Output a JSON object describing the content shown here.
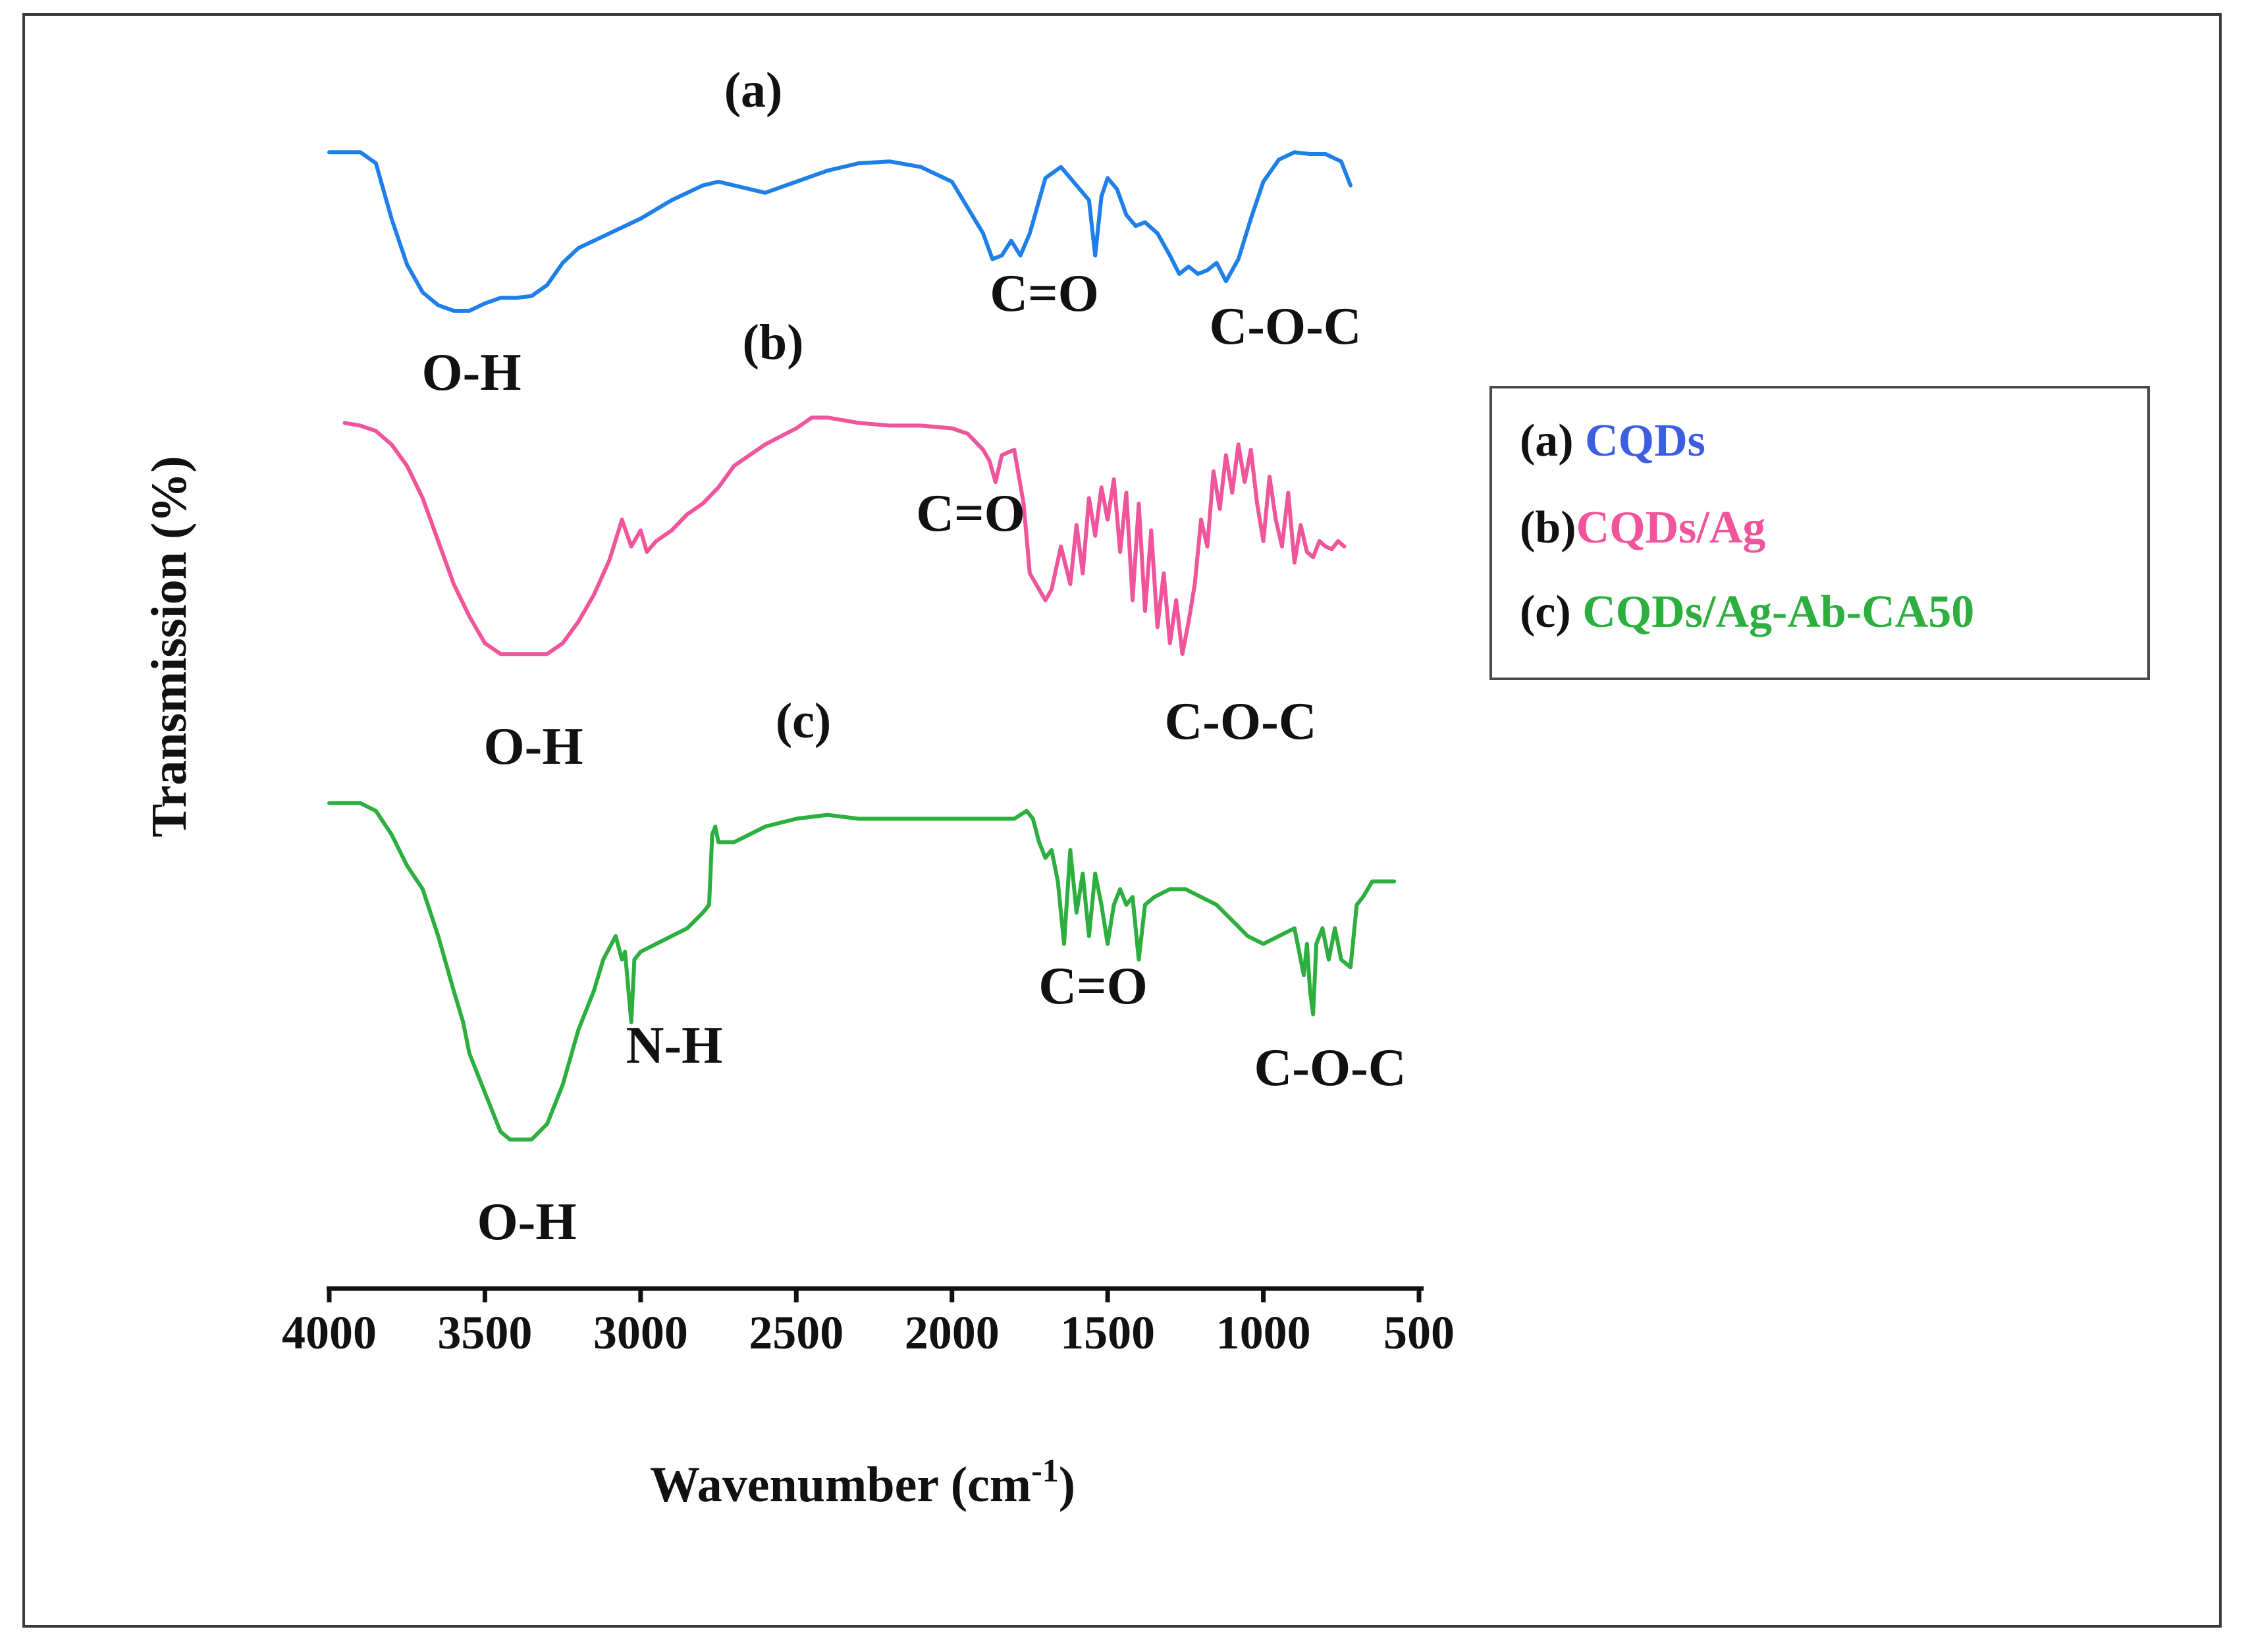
{
  "chart_data": {
    "type": "line",
    "title": "",
    "xlabel": "Wavenumber (cm",
    "xlabel_sup": "-1",
    "xlabel_close": ")",
    "ylabel": "Transmission (%)",
    "xlim": [
      4000,
      500
    ],
    "x_reversed": true,
    "x_ticks": [
      4000,
      3500,
      3000,
      2500,
      2000,
      1500,
      1000,
      500
    ],
    "x_tick_labels": [
      "4000",
      "3500",
      "3000",
      "2500",
      "2000",
      "1500",
      "1000",
      "500"
    ],
    "grid": false,
    "legend_position": "right",
    "y_units": "relative (arbitrary, vertically offset)",
    "series": [
      {
        "name": "CQDs",
        "marker": "(a)",
        "color": "#1f7fe8",
        "x": [
          4000,
          3900,
          3850,
          3800,
          3750,
          3700,
          3650,
          3600,
          3550,
          3500,
          3450,
          3400,
          3350,
          3300,
          3250,
          3200,
          3100,
          3000,
          2900,
          2800,
          2750,
          2700,
          2600,
          2500,
          2400,
          2300,
          2200,
          2100,
          2000,
          1950,
          1900,
          1870,
          1840,
          1810,
          1780,
          1750,
          1700,
          1650,
          1600,
          1560,
          1540,
          1520,
          1500,
          1470,
          1440,
          1410,
          1380,
          1340,
          1300,
          1270,
          1240,
          1210,
          1180,
          1150,
          1120,
          1080,
          1040,
          1000,
          950,
          900,
          850,
          800,
          750,
          720
        ],
        "y": [
          96,
          96,
          90,
          60,
          35,
          20,
          13,
          10,
          10,
          14,
          17,
          17,
          18,
          24,
          36,
          44,
          52,
          60,
          70,
          78,
          80,
          78,
          74,
          80,
          86,
          90,
          91,
          88,
          80,
          66,
          52,
          38,
          40,
          48,
          40,
          52,
          82,
          88,
          78,
          70,
          40,
          72,
          82,
          76,
          62,
          56,
          58,
          52,
          40,
          30,
          34,
          30,
          32,
          36,
          26,
          38,
          60,
          80,
          92,
          96,
          95,
          95,
          91,
          78
        ]
      },
      {
        "name": "CQDs/Ag",
        "marker": "(b)",
        "color": "#f0549a",
        "x": [
          3950,
          3900,
          3850,
          3800,
          3750,
          3700,
          3650,
          3600,
          3550,
          3500,
          3450,
          3400,
          3350,
          3300,
          3250,
          3200,
          3150,
          3100,
          3060,
          3030,
          3000,
          2980,
          2950,
          2900,
          2850,
          2800,
          2750,
          2700,
          2600,
          2500,
          2450,
          2400,
          2350,
          2300,
          2200,
          2100,
          2000,
          1950,
          1900,
          1880,
          1860,
          1840,
          1800,
          1770,
          1750,
          1700,
          1680,
          1650,
          1620,
          1600,
          1580,
          1560,
          1540,
          1520,
          1500,
          1480,
          1460,
          1440,
          1420,
          1400,
          1380,
          1360,
          1340,
          1320,
          1300,
          1280,
          1260,
          1240,
          1220,
          1200,
          1180,
          1160,
          1140,
          1120,
          1100,
          1080,
          1060,
          1040,
          1020,
          1000,
          980,
          960,
          940,
          920,
          900,
          880,
          860,
          840,
          820,
          800,
          780,
          760,
          740
        ],
        "y": [
          96,
          95,
          93,
          88,
          80,
          68,
          52,
          36,
          24,
          14,
          10,
          10,
          10,
          10,
          14,
          22,
          32,
          45,
          60,
          50,
          56,
          48,
          52,
          56,
          62,
          66,
          72,
          80,
          88,
          94,
          98,
          98,
          97,
          96,
          95,
          95,
          94,
          92,
          86,
          82,
          74,
          84,
          86,
          66,
          40,
          30,
          34,
          50,
          36,
          58,
          40,
          68,
          54,
          72,
          60,
          75,
          48,
          70,
          30,
          66,
          26,
          56,
          20,
          40,
          14,
          30,
          10,
          22,
          36,
          60,
          50,
          78,
          64,
          84,
          70,
          88,
          74,
          86,
          66,
          52,
          76,
          60,
          50,
          70,
          44,
          58,
          48,
          46,
          52,
          50,
          49,
          52,
          50
        ]
      },
      {
        "name": "CQDs/Ag-Ab-CA50",
        "marker": "(c)",
        "color": "#2caf3e",
        "x": [
          4000,
          3900,
          3850,
          3800,
          3750,
          3700,
          3650,
          3600,
          3570,
          3550,
          3500,
          3470,
          3450,
          3420,
          3400,
          3350,
          3300,
          3250,
          3200,
          3150,
          3120,
          3080,
          3060,
          3050,
          3030,
          3020,
          3000,
          2950,
          2900,
          2850,
          2800,
          2780,
          2770,
          2760,
          2750,
          2700,
          2600,
          2500,
          2400,
          2300,
          2200,
          2100,
          2000,
          1900,
          1800,
          1760,
          1740,
          1720,
          1700,
          1680,
          1660,
          1640,
          1620,
          1600,
          1580,
          1560,
          1540,
          1520,
          1500,
          1480,
          1460,
          1440,
          1420,
          1400,
          1380,
          1350,
          1300,
          1250,
          1200,
          1150,
          1100,
          1050,
          1000,
          950,
          900,
          870,
          860,
          850,
          840,
          830,
          810,
          790,
          770,
          750,
          720,
          700,
          680,
          650,
          620,
          580
        ],
        "y": [
          96,
          96,
          94,
          88,
          80,
          74,
          62,
          48,
          40,
          32,
          22,
          16,
          12,
          10,
          10,
          10,
          14,
          24,
          38,
          48,
          56,
          62,
          56,
          58,
          40,
          56,
          58,
          60,
          62,
          64,
          68,
          70,
          88,
          90,
          86,
          86,
          90,
          92,
          93,
          92,
          92,
          92,
          92,
          92,
          92,
          94,
          92,
          86,
          82,
          84,
          76,
          60,
          84,
          68,
          78,
          62,
          78,
          70,
          60,
          70,
          74,
          70,
          72,
          56,
          70,
          72,
          74,
          74,
          72,
          70,
          66,
          62,
          60,
          62,
          64,
          52,
          60,
          48,
          42,
          60,
          64,
          56,
          64,
          56,
          54,
          70,
          72,
          76,
          76,
          76
        ]
      }
    ]
  },
  "annotations": {
    "a_panel": "(a)",
    "b_panel": "(b)",
    "c_panel": "(c)",
    "a_oh": "O-H",
    "a_co": "C=O",
    "a_coc": "C-O-C",
    "b_oh": "O-H",
    "b_co": "C=O",
    "b_coc": "C-O-C",
    "c_oh": "O-H",
    "c_nh": "N-H",
    "c_co": "C=O",
    "c_coc": "C-O-C"
  },
  "legend": {
    "items": [
      {
        "marker": "(a) ",
        "name": "CQDs",
        "color": "#3b5fe0"
      },
      {
        "marker": "(b)",
        "name": "CQDs/Ag",
        "color": "#f0549a"
      },
      {
        "marker": "(c) ",
        "name": "CQDs/Ag-Ab-CA50",
        "color": "#2caf3e"
      }
    ]
  }
}
